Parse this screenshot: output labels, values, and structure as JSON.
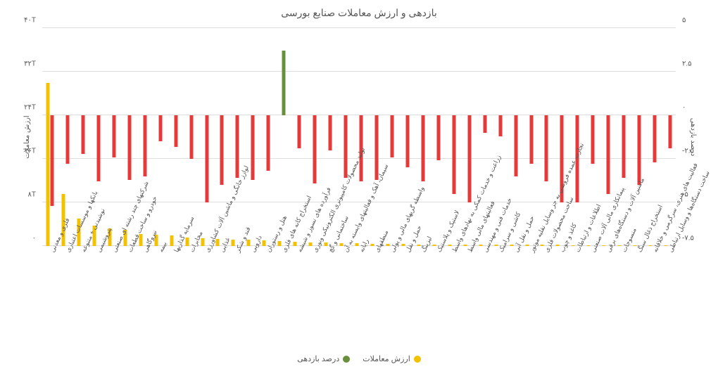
{
  "title": "بازدهی و ارزش معاملات صنایع بورسی",
  "left_axis": {
    "title": "ارزش معاملات",
    "min": 0,
    "max": 40,
    "ticks": [
      0,
      8,
      16,
      24,
      32,
      40
    ],
    "tick_labels": [
      "۰",
      "۸T",
      "۱۶T",
      "۲۴T",
      "۳۲T",
      "۴۰T"
    ]
  },
  "right_axis": {
    "title": "درصد بازدهی",
    "min": -7.5,
    "max": 5,
    "ticks": [
      -7.5,
      -5,
      -2.5,
      0,
      2.5,
      5
    ],
    "tick_labels": [
      "-۷.۵",
      "-۵",
      "-۲.۵",
      "۰",
      "۲.۵",
      "۵"
    ]
  },
  "colors": {
    "volume": "#f2c200",
    "return_pos": "#6a8f3c",
    "return_neg": "#e63939",
    "grid": "#dddddd",
    "bg": "#ffffff",
    "text": "#555555"
  },
  "legend": {
    "volume_label": "ارزش معاملات",
    "return_label": "درصد بازدهی"
  },
  "series": [
    {
      "label": "فلزی و معدنی",
      "volume": 30,
      "return": -5.2
    },
    {
      "label": "بانکها و موسسات اعتباری",
      "volume": 9.5,
      "return": -2.8
    },
    {
      "label": "نوشیدنی + متنوعه",
      "volume": 5.0,
      "return": -2.2
    },
    {
      "label": "پتروشیمی",
      "volume": 3.8,
      "return": -3.8
    },
    {
      "label": "شرکتهای چند رشته ای صنعتی",
      "volume": 3.2,
      "return": -2.4
    },
    {
      "label": "خودرو و ساخت قطعات",
      "volume": 3.0,
      "return": -3.7
    },
    {
      "label": "نیروگاهی",
      "volume": 2.2,
      "return": -3.5
    },
    {
      "label": "بیمه",
      "volume": 2.1,
      "return": -1.5
    },
    {
      "label": "سرمایه گذاریها",
      "volume": 2.0,
      "return": -1.8
    },
    {
      "label": "مخابرات",
      "volume": 1.5,
      "return": -2.5
    },
    {
      "label": "لوازز خانگی و ماشین آلات کشاورزی",
      "volume": 1.4,
      "return": -5.0
    },
    {
      "label": "غذایی",
      "volume": 1.3,
      "return": -4.0
    },
    {
      "label": "قند و شکر",
      "volume": 1.2,
      "return": -3.6
    },
    {
      "label": "دارویی",
      "volume": 1.1,
      "return": -3.7
    },
    {
      "label": "هتل و رستوران",
      "volume": 1.0,
      "return": -3.2
    },
    {
      "label": "استخراج کانه های فلزی",
      "volume": 0.9,
      "return": 3.7
    },
    {
      "label": "فرآورده های نسوز و شیشه",
      "volume": 0.8,
      "return": -1.9
    },
    {
      "label": "توليد محصولات کامپيوتری الکترونيکی ونوری",
      "volume": 0.7,
      "return": -3.9
    },
    {
      "label": "ساختمانی و گچ",
      "volume": 0.6,
      "return": -2.0
    },
    {
      "label": "سیمان، آهک و فعالیتهای وابسته به آن",
      "volume": 0.5,
      "return": -3.6
    },
    {
      "label": "رایانه",
      "volume": 0.5,
      "return": -3.8
    },
    {
      "label": "منطقهای",
      "volume": 0.4,
      "return": -3.7
    },
    {
      "label": "واسطه گریهای مالی و پولی",
      "volume": 0.4,
      "return": -2.4
    },
    {
      "label": "حمل و نقل",
      "volume": 0.4,
      "return": -3.0
    },
    {
      "label": "لیزینگ",
      "volume": 0.3,
      "return": -3.8
    },
    {
      "label": "لاستیک و پلاستیک",
      "volume": 0.3,
      "return": -2.6
    },
    {
      "label": "زراعت و خدمات کمکی به نهادهای واسط",
      "volume": 0.3,
      "return": -4.5
    },
    {
      "label": "فعالیتهای مالی واسط",
      "volume": 0.3,
      "return": -5.0
    },
    {
      "label": "خدمات فنی و مهندسی",
      "volume": 0.2,
      "return": -1.0
    },
    {
      "label": "کاشی و سرامیک",
      "volume": 0.2,
      "return": -1.2
    },
    {
      "label": "حمل و نقل آبی",
      "volume": 0.2,
      "return": -3.5
    },
    {
      "label": "تجارت عمده فروشی به جز وسایل نقلیه موتور",
      "volume": 0.2,
      "return": -2.8
    },
    {
      "label": "ساخت محصولات فلزی",
      "volume": 0.2,
      "return": -3.8
    },
    {
      "label": "کاغذ و چوب",
      "volume": 0.2,
      "return": -5.0
    },
    {
      "label": "اطلاعات و ارتباطات",
      "volume": 0.15,
      "return": -5.0
    },
    {
      "label": "پیمانکاری مالی آلات صنعتی",
      "volume": 0.15,
      "return": -2.8
    },
    {
      "label": "ماشین آلات و دستگاه‌های برقی",
      "volume": 0.15,
      "return": -4.5
    },
    {
      "label": "منسوجات",
      "volume": 0.1,
      "return": -3.6
    },
    {
      "label": "استخراج ذغال سنگ",
      "volume": 0.1,
      "return": -4.0
    },
    {
      "label": "فعالیت های هنری، سرگرمی و خلاقانه",
      "volume": 0.1,
      "return": -2.7
    },
    {
      "label": "ساخت دستگاه‌ها و وسایل ارتباطی",
      "volume": 0.1,
      "return": -1.9
    }
  ]
}
